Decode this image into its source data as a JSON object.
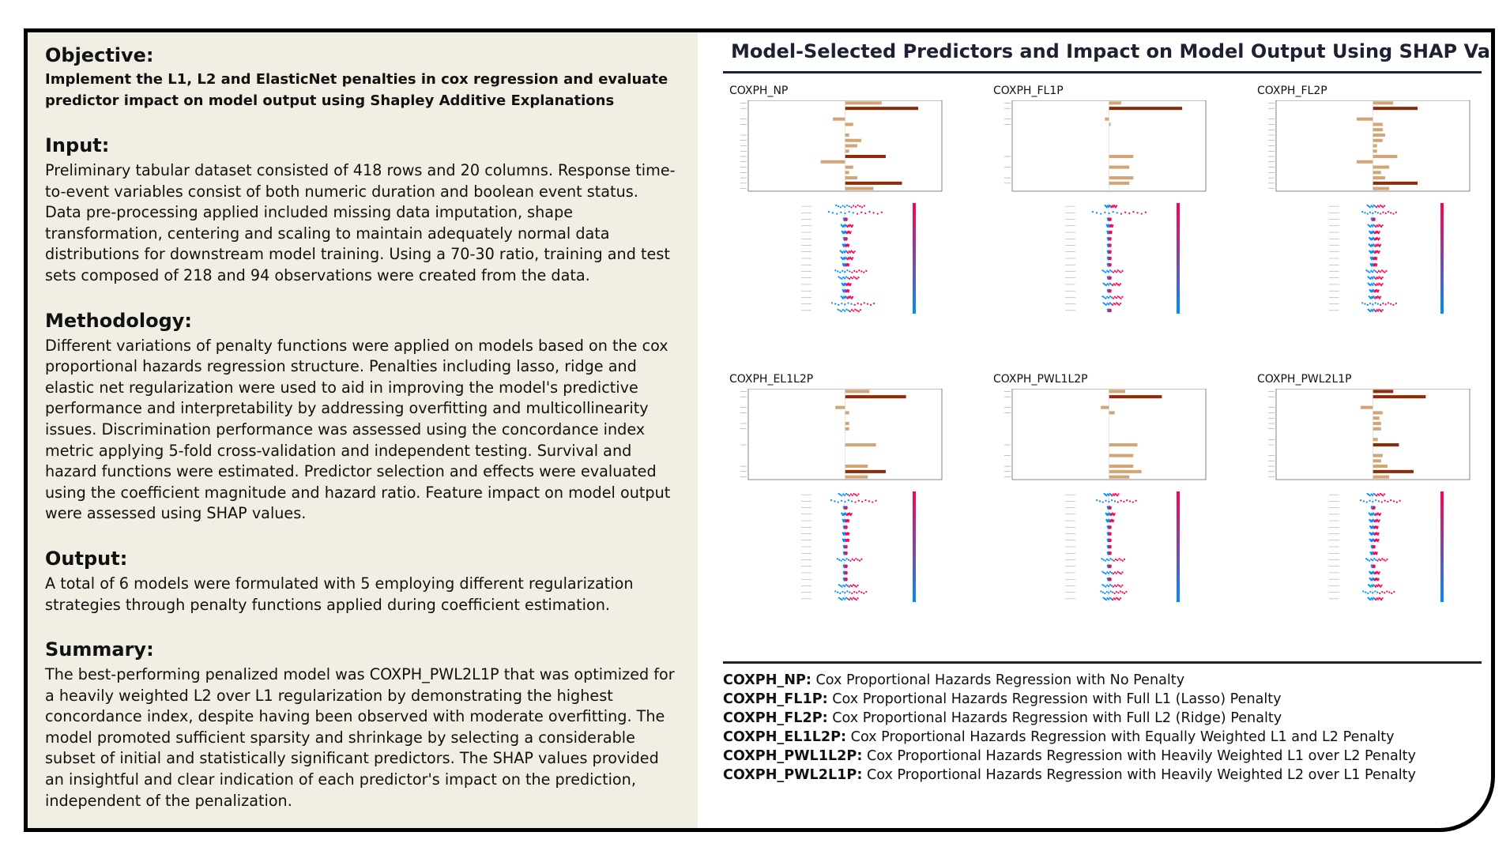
{
  "left": {
    "objective_heading": "Objective:",
    "objective_text": "Implement the L1, L2 and ElasticNet penalties in cox regression and evaluate predictor impact on model output using Shapley Additive Explanations",
    "input_heading": "Input:",
    "input_text": "Preliminary tabular dataset consisted of 418 rows and 20 columns. Response time-to-event variables consist of both numeric duration and boolean event status. Data pre-processing applied included missing data imputation, shape transformation, centering and scaling to maintain adequately normal data distributions for downstream model training. Using a 70-30 ratio, training and test sets composed of 218  and 94 observations were created from the data.",
    "methodology_heading": "Methodology:",
    "methodology_text": "Different variations of penalty functions were applied on models based on the cox proportional hazards regression structure. Penalties including lasso, ridge and elastic net regularization were used to aid in improving the model's predictive performance and interpretability by addressing overfitting and multicollinearity issues. Discrimination performance was assessed using the concordance index metric applying 5-fold cross-validation and independent testing. Survival and hazard functions were estimated. Predictor selection and effects were evaluated using the coefficient magnitude and hazard ratio. Feature impact on model output were assessed using SHAP values.",
    "output_heading": "Output:",
    "output_text": "A total of 6 models were formulated with 5 employing different regularization strategies through penalty functions applied during coefficient estimation.",
    "summary_heading": "Summary:",
    "summary_text": "The best-performing penalized model was COXPH_PWL2L1P that was optimized for a heavily weighted L2  over L1 regularization by demonstrating the highest concordance index, despite having been observed with moderate overfitting. The model promoted sufficient sparsity and shrinkage by selecting a considerable subset of initial and statistically significant predictors. The SHAP values provided an insightful and clear indication of each predictor's impact on the prediction, independent of the penalization."
  },
  "right": {
    "title": "Model-Selected Predictors and Impact on Model Output Using SHAP Values",
    "panels": [
      {
        "name": "COXPH_NP"
      },
      {
        "name": "COXPH_FL1P"
      },
      {
        "name": "COXPH_FL2P"
      },
      {
        "name": "COXPH_EL1L2P"
      },
      {
        "name": "COXPH_PWL1L2P"
      },
      {
        "name": "COXPH_PWL2L1P"
      }
    ],
    "legend": [
      {
        "code": "COXPH_NP:",
        "desc": " Cox Proportional Hazards Regression with No Penalty"
      },
      {
        "code": "COXPH_FL1P:",
        "desc": " Cox Proportional Hazards Regression with Full L1 (Lasso) Penalty"
      },
      {
        "code": "COXPH_FL2P:",
        "desc": " Cox Proportional Hazards Regression with Full L2 (Ridge) Penalty"
      },
      {
        "code": "COXPH_EL1L2P:",
        "desc": " Cox Proportional Hazards Regression with Equally Weighted L1 and L2 Penalty"
      },
      {
        "code": "COXPH_PWL1L2P:",
        "desc": " Cox Proportional Hazards Regression with Heavily Weighted L1 over L2 Penalty"
      },
      {
        "code": "COXPH_PWL2L1P:",
        "desc": " Cox Proportional Hazards Regression with Heavily Weighted L2 over L1 Penalty"
      }
    ]
  },
  "colors": {
    "coef_dark": "#8b2c0a",
    "coef_light": "#d4a574",
    "shap_high": "#ff0052",
    "shap_low": "#008bfb",
    "rule": "#1a2236"
  }
}
